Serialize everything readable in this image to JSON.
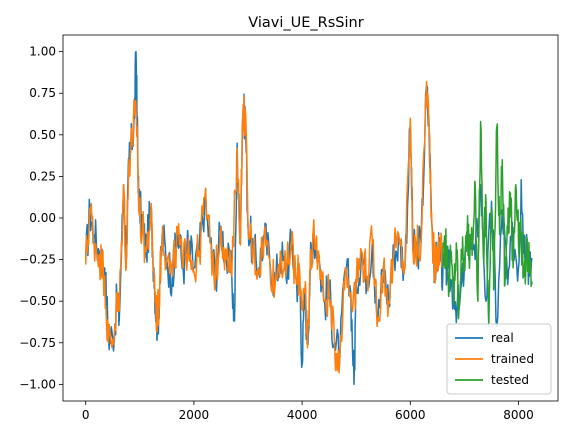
{
  "chart_data": {
    "type": "line",
    "title": "Viavi_UE_RsSinr",
    "xlabel": "",
    "ylabel": "",
    "xlim": [
      -420,
      8730
    ],
    "ylim": [
      -1.1,
      1.1
    ],
    "x_ticks": [
      0,
      2000,
      4000,
      6000,
      8000
    ],
    "x_tick_labels": [
      "0",
      "2000",
      "4000",
      "6000",
      "8000"
    ],
    "y_ticks": [
      -1.0,
      -0.75,
      -0.5,
      -0.25,
      0.0,
      0.25,
      0.5,
      0.75,
      1.0
    ],
    "y_tick_labels": [
      "−1.00",
      "−0.75",
      "−0.50",
      "−0.25",
      "0.00",
      "0.25",
      "0.50",
      "0.75",
      "1.00"
    ],
    "grid": false,
    "legend_position": "lower-right",
    "series": [
      {
        "name": "real",
        "color": "#1f77b4",
        "x": [
          0,
          80,
          150,
          250,
          350,
          420,
          500,
          580,
          620,
          700,
          750,
          800,
          850,
          900,
          930,
          950,
          980,
          1050,
          1120,
          1200,
          1260,
          1300,
          1330,
          1370,
          1420,
          1500,
          1600,
          1700,
          1800,
          1900,
          2000,
          2100,
          2200,
          2300,
          2400,
          2500,
          2600,
          2700,
          2750,
          2800,
          2850,
          2900,
          2950,
          3000,
          3100,
          3200,
          3300,
          3400,
          3500,
          3600,
          3700,
          3800,
          3900,
          3950,
          4000,
          4050,
          4100,
          4150,
          4200,
          4300,
          4400,
          4500,
          4600,
          4700,
          4800,
          4900,
          4960,
          5000,
          5100,
          5200,
          5300,
          5400,
          5500,
          5600,
          5700,
          5800,
          5900,
          6000,
          6050,
          6100,
          6200,
          6300,
          6350,
          6400,
          6450,
          6500,
          6550,
          6600,
          6650,
          6700,
          6800,
          6900,
          7000,
          7100,
          7200,
          7300,
          7400,
          7500,
          7600,
          7700,
          7800,
          7900,
          8000,
          8050,
          8100,
          8150,
          8200,
          8250
        ],
        "y": [
          -0.26,
          0.05,
          -0.1,
          -0.2,
          -0.3,
          -0.7,
          -0.72,
          -0.5,
          -0.6,
          0.2,
          -0.25,
          0.35,
          0.45,
          0.6,
          1.0,
          0.6,
          0.1,
          -0.05,
          -0.2,
          0.05,
          -0.3,
          -0.58,
          -0.65,
          -0.4,
          -0.1,
          -0.25,
          -0.35,
          -0.1,
          -0.3,
          -0.15,
          -0.3,
          -0.2,
          0.1,
          -0.15,
          -0.35,
          -0.05,
          -0.25,
          -0.35,
          -0.62,
          0.45,
          -0.15,
          0.6,
          0.62,
          -0.05,
          -0.2,
          -0.3,
          -0.1,
          -0.25,
          -0.4,
          -0.2,
          -0.35,
          -0.15,
          -0.4,
          -0.3,
          -0.88,
          -0.45,
          -0.75,
          -0.3,
          -0.1,
          -0.2,
          -0.5,
          -0.45,
          -0.75,
          -0.82,
          -0.3,
          -0.45,
          -1.0,
          -0.4,
          -0.2,
          -0.35,
          -0.15,
          -0.62,
          -0.3,
          -0.5,
          -0.2,
          -0.15,
          -0.3,
          0.55,
          -0.2,
          -0.2,
          -0.15,
          0.8,
          0.5,
          -0.05,
          -0.3,
          -0.25,
          -0.15,
          -0.35,
          -0.3,
          -0.3,
          -0.45,
          -0.55,
          -0.3,
          -0.1,
          -0.25,
          0.2,
          -0.5,
          0.1,
          -0.65,
          0.05,
          -0.4,
          -0.1,
          -0.3,
          0.23,
          -0.15,
          -0.1,
          -0.35,
          -0.25
        ],
        "x_end": 8250
      },
      {
        "name": "trained",
        "color": "#ff7f0e",
        "x": [
          0,
          80,
          150,
          250,
          350,
          420,
          500,
          580,
          620,
          700,
          750,
          800,
          850,
          900,
          950,
          980,
          1050,
          1120,
          1200,
          1260,
          1300,
          1330,
          1370,
          1420,
          1500,
          1600,
          1700,
          1800,
          1900,
          2000,
          2100,
          2200,
          2300,
          2400,
          2500,
          2600,
          2700,
          2800,
          2850,
          2900,
          2950,
          3000,
          3100,
          3200,
          3300,
          3400,
          3500,
          3600,
          3700,
          3800,
          3900,
          3950,
          4000,
          4050,
          4100,
          4150,
          4200,
          4300,
          4400,
          4500,
          4600,
          4700,
          4800,
          4900,
          5000,
          5100,
          5200,
          5300,
          5400,
          5500,
          5600,
          5700,
          5800,
          5900,
          6000,
          6050,
          6100,
          6200,
          6300,
          6350,
          6400,
          6450,
          6500,
          6550,
          6600
        ],
        "y": [
          -0.28,
          0.06,
          -0.12,
          -0.22,
          -0.35,
          -0.75,
          -0.73,
          -0.52,
          -0.55,
          0.2,
          -0.3,
          0.35,
          0.45,
          0.62,
          0.55,
          0.05,
          -0.08,
          -0.2,
          0.02,
          -0.32,
          -0.55,
          -0.6,
          -0.38,
          -0.05,
          -0.25,
          -0.35,
          -0.1,
          -0.3,
          -0.12,
          -0.32,
          -0.2,
          0.12,
          -0.15,
          -0.35,
          -0.05,
          -0.25,
          -0.35,
          0.42,
          -0.15,
          0.58,
          0.65,
          -0.05,
          -0.2,
          -0.3,
          -0.1,
          -0.25,
          -0.4,
          -0.2,
          -0.35,
          -0.15,
          -0.4,
          -0.3,
          -0.5,
          -0.45,
          -0.78,
          -0.3,
          -0.1,
          -0.2,
          -0.5,
          -0.45,
          -0.78,
          -0.8,
          -0.3,
          -0.45,
          -0.4,
          -0.2,
          -0.35,
          -0.15,
          -0.6,
          -0.3,
          -0.5,
          -0.2,
          -0.15,
          -0.3,
          0.6,
          -0.2,
          -0.2,
          -0.15,
          0.82,
          0.52,
          -0.05,
          -0.3,
          -0.25,
          -0.15,
          -0.25
        ]
      },
      {
        "name": "tested",
        "color": "#2ca02c",
        "x": [
          6600,
          6650,
          6700,
          6750,
          6800,
          6850,
          6900,
          6950,
          7000,
          7050,
          7100,
          7150,
          7200,
          7250,
          7300,
          7350,
          7400,
          7450,
          7500,
          7550,
          7600,
          7650,
          7700,
          7750,
          7800,
          7850,
          7900,
          7950,
          8000,
          8050,
          8100,
          8150,
          8200,
          8250
        ],
        "y": [
          -0.3,
          -0.15,
          -0.35,
          -0.25,
          -0.45,
          -0.15,
          -0.55,
          -0.2,
          -0.3,
          -0.1,
          -0.25,
          -0.15,
          0.2,
          -0.5,
          0.58,
          -0.2,
          0.1,
          -0.65,
          0.05,
          -0.4,
          0.55,
          -0.1,
          0.35,
          -0.4,
          -0.1,
          0.15,
          -0.3,
          0.2,
          -0.15,
          -0.1,
          -0.35,
          -0.2,
          -0.25,
          -0.4
        ]
      }
    ]
  }
}
